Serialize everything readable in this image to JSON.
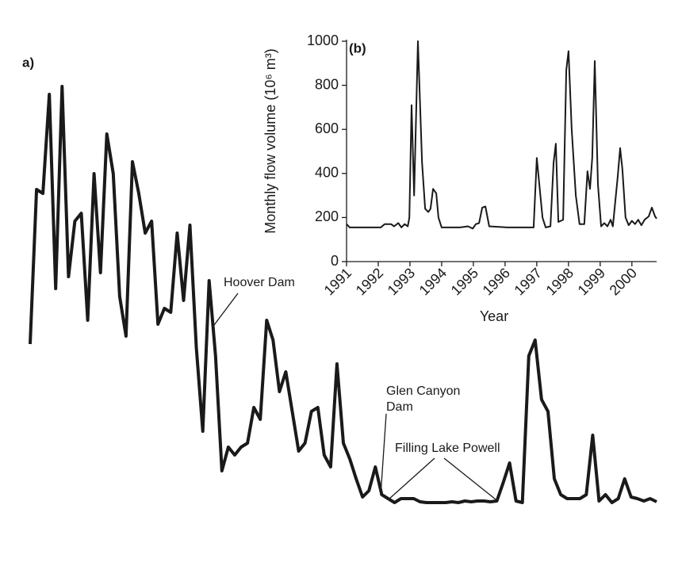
{
  "chart_data": [
    {
      "type": "line",
      "label": "a)",
      "values": [
        40,
        79,
        78,
        103,
        54,
        105,
        57,
        71,
        73,
        46,
        83,
        58,
        93,
        83,
        52,
        42,
        86,
        78,
        68,
        71,
        45,
        49,
        48,
        68,
        51,
        70,
        39,
        18,
        56,
        37,
        8,
        14,
        12,
        14,
        15,
        24,
        21,
        46,
        41,
        28,
        33,
        23,
        13,
        15,
        23,
        24,
        12,
        9,
        35,
        15,
        11,
        6,
        1.4,
        3,
        9,
        2,
        1,
        0,
        1,
        1,
        1,
        0.2,
        0,
        0,
        0,
        0,
        0.2,
        0,
        0.4,
        0.2,
        0.4,
        0.4,
        0.2,
        0.4,
        5,
        10,
        0.4,
        0,
        37,
        41,
        26,
        23,
        6,
        2,
        1,
        1,
        1,
        2,
        17,
        0.4,
        2,
        0,
        1,
        6,
        1.4,
        1,
        0.4,
        1,
        0.2
      ],
      "color": "#1a1a1a",
      "annotations": [
        [
          "Hoover Dam"
        ],
        [
          "Glen Canyon",
          "Dam"
        ],
        [
          "Filling Lake Powell"
        ]
      ]
    },
    {
      "type": "line",
      "label": "(b)",
      "x": [
        1991.0,
        1991.1,
        1992.08,
        1992.2,
        1992.4,
        1992.5,
        1992.63,
        1992.73,
        1992.83,
        1992.93,
        1992.98,
        1993.05,
        1993.13,
        1993.25,
        1993.38,
        1993.48,
        1993.58,
        1993.65,
        1993.73,
        1993.83,
        1993.9,
        1994.0,
        1994.58,
        1994.83,
        1994.98,
        1995.08,
        1995.18,
        1995.28,
        1995.38,
        1995.5,
        1996.08,
        1996.9,
        1997.0,
        1997.18,
        1997.28,
        1997.43,
        1997.53,
        1997.6,
        1997.68,
        1997.83,
        1997.93,
        1998.0,
        1998.1,
        1998.23,
        1998.35,
        1998.5,
        1998.6,
        1998.68,
        1998.75,
        1998.83,
        1998.93,
        1999.03,
        1999.13,
        1999.23,
        1999.33,
        1999.4,
        1999.55,
        1999.63,
        1999.7,
        1999.8,
        1999.9,
        2000.0,
        2000.1,
        2000.2,
        2000.3,
        2000.4,
        2000.53,
        2000.63,
        2000.73,
        2000.78
      ],
      "values": [
        170,
        155,
        155,
        170,
        170,
        160,
        175,
        155,
        170,
        160,
        200,
        710,
        300,
        1000,
        450,
        240,
        225,
        240,
        330,
        310,
        200,
        155,
        155,
        160,
        150,
        170,
        175,
        245,
        250,
        160,
        155,
        155,
        470,
        200,
        155,
        160,
        450,
        535,
        180,
        190,
        870,
        955,
        600,
        300,
        170,
        170,
        410,
        330,
        470,
        910,
        350,
        160,
        175,
        160,
        190,
        160,
        380,
        515,
        420,
        200,
        165,
        185,
        170,
        190,
        165,
        190,
        205,
        245,
        205,
        195
      ],
      "color": "#1a1a1a",
      "xlim": [
        1991,
        2000.78
      ],
      "ylim": [
        0,
        1000
      ],
      "xticks": [
        1991,
        1992,
        1993,
        1994,
        1995,
        1996,
        1997,
        1998,
        1999,
        2000
      ],
      "yticks": [
        0,
        200,
        400,
        600,
        800,
        1000
      ],
      "x_label": "Year",
      "y_label": "Monthly flow volume (10⁶ m³)"
    }
  ]
}
